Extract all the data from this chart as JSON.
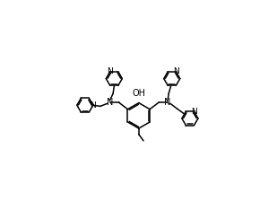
{
  "bg_color": "#ffffff",
  "line_color": "#000000",
  "line_width": 1.1,
  "figsize": [
    3.09,
    2.34
  ],
  "dpi": 100,
  "xlim": [
    0,
    10
  ],
  "ylim": [
    0,
    7.6
  ]
}
